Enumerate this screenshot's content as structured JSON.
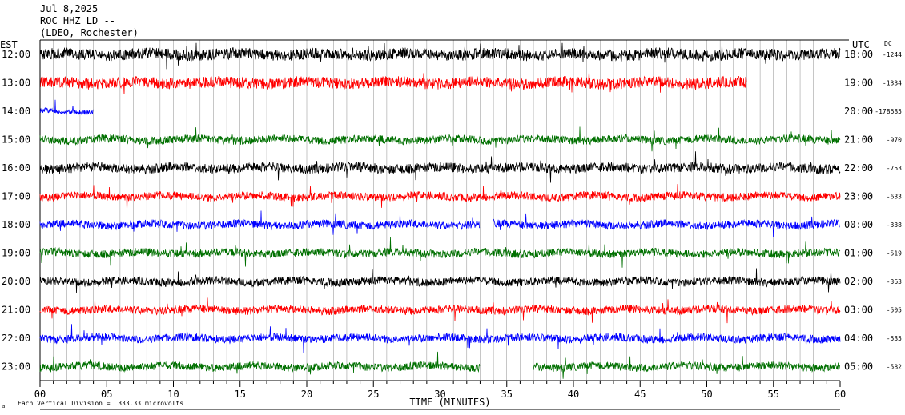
{
  "header": {
    "date": "Jul 8,2025",
    "station": "ROC HHZ LD --",
    "network": "(LDEO, Rochester)"
  },
  "left_zone_label": "EST",
  "right_zone_label": "UTC",
  "dc_label": "DC",
  "colors": {
    "cycle": [
      "#000000",
      "#ff0000",
      "#0000ff",
      "#007000"
    ],
    "axis": "#000000",
    "grid": "#000000"
  },
  "footer": {
    "icon": "seismograph-icon",
    "icon_glyph": "a",
    "note": "Each Vertical Division =  333.33 microvolts"
  },
  "chart_data": {
    "type": "line",
    "title": "",
    "xlabel": "TIME (MINUTES)",
    "ylabel": "",
    "xlim": [
      0,
      60
    ],
    "x_ticks": [
      "00",
      "05",
      "10",
      "15",
      "20",
      "25",
      "30",
      "35",
      "40",
      "45",
      "50",
      "55",
      "60"
    ],
    "grid": "vertical minute lines",
    "rows": [
      {
        "est": "12:00",
        "utc": "18:00",
        "dc": "-1244",
        "color": "#000000",
        "start": 0,
        "end": 60,
        "amp": 7
      },
      {
        "est": "13:00",
        "utc": "19:00",
        "dc": "-1334",
        "color": "#ff0000",
        "start": 0,
        "end": 53,
        "amp": 7
      },
      {
        "est": "14:00",
        "utc": "20:00",
        "dc": "-178685",
        "color": "#0000ff",
        "start": 0,
        "end": 4,
        "amp": 3
      },
      {
        "est": "15:00",
        "utc": "21:00",
        "dc": "-970",
        "color": "#007000",
        "start": 0,
        "end": 60,
        "amp": 5
      },
      {
        "est": "16:00",
        "utc": "22:00",
        "dc": "-753",
        "color": "#000000",
        "start": 0,
        "end": 60,
        "amp": 6
      },
      {
        "est": "17:00",
        "utc": "23:00",
        "dc": "-633",
        "color": "#ff0000",
        "start": 0,
        "end": 60,
        "amp": 5
      },
      {
        "est": "18:00",
        "utc": "00:00",
        "dc": "-338",
        "color": "#0000ff",
        "start": 0,
        "end": 60,
        "amp": 5
      },
      {
        "est": "19:00",
        "utc": "01:00",
        "dc": "-519",
        "color": "#007000",
        "start": 0,
        "end": 60,
        "amp": 5
      },
      {
        "est": "20:00",
        "utc": "02:00",
        "dc": "-363",
        "color": "#000000",
        "start": 0,
        "end": 60,
        "amp": 5
      },
      {
        "est": "21:00",
        "utc": "03:00",
        "dc": "-505",
        "color": "#ff0000",
        "start": 0,
        "end": 60,
        "amp": 5
      },
      {
        "est": "22:00",
        "utc": "04:00",
        "dc": "-535",
        "color": "#0000ff",
        "start": 0,
        "end": 60,
        "amp": 5
      },
      {
        "est": "23:00",
        "utc": "05:00",
        "dc": "-582",
        "color": "#007000",
        "start": 0,
        "end": 60,
        "amp": 5
      }
    ],
    "gaps": [
      {
        "row": 1,
        "from": 53,
        "to": 55
      },
      {
        "row": 6,
        "from": 33,
        "to": 34
      },
      {
        "row": 11,
        "from": 33,
        "to": 37
      }
    ]
  }
}
